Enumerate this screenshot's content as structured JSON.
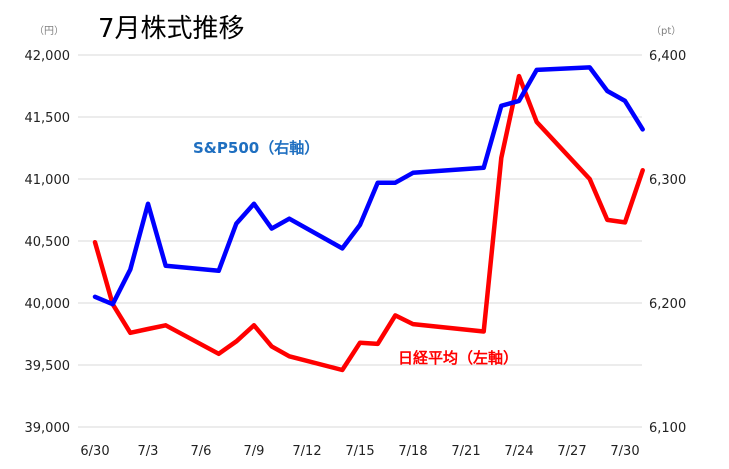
{
  "title": "7月株式推移",
  "chart_data": {
    "type": "line",
    "title": "7月株式推移",
    "x_tick_labels": [
      "6/30",
      "7/3",
      "7/6",
      "7/9",
      "7/12",
      "7/15",
      "7/18",
      "7/21",
      "7/24",
      "7/27",
      "7/30"
    ],
    "left_axis": {
      "unit": "（円）",
      "ylim": [
        39000,
        42000
      ],
      "ticks": [
        "39,000",
        "39,500",
        "40,000",
        "40,500",
        "41,000",
        "41,500",
        "42,000"
      ]
    },
    "right_axis": {
      "unit": "（pt）",
      "ylim": [
        6100,
        6400
      ],
      "ticks": [
        "6,100",
        "6,200",
        "6,300",
        "6,400"
      ]
    },
    "grid": "horizontal",
    "series": [
      {
        "name": "日経平均",
        "label": "日経平均（左軸）",
        "axis": "left",
        "color": "#ff0000",
        "x": [
          "6/30",
          "7/1",
          "7/2",
          "7/3",
          "7/4",
          "7/7",
          "7/8",
          "7/9",
          "7/10",
          "7/11",
          "7/14",
          "7/15",
          "7/16",
          "7/17",
          "7/18",
          "7/22",
          "7/23",
          "7/24",
          "7/25",
          "7/28",
          "7/29",
          "7/30",
          "7/31"
        ],
        "values": [
          40490,
          39990,
          39760,
          39790,
          39820,
          39590,
          39690,
          39820,
          39650,
          39570,
          39460,
          39680,
          39670,
          39900,
          39830,
          39770,
          41170,
          41830,
          41460,
          41000,
          40670,
          40650,
          41070
        ]
      },
      {
        "name": "S&P500",
        "label": "S&P500（右軸）",
        "axis": "right",
        "color": "#0000ff",
        "x": [
          "6/30",
          "7/1",
          "7/2",
          "7/3",
          "7/4",
          "7/7",
          "7/8",
          "7/9",
          "7/10",
          "7/11",
          "7/14",
          "7/15",
          "7/16",
          "7/17",
          "7/18",
          "7/22",
          "7/23",
          "7/24",
          "7/25",
          "7/28",
          "7/29",
          "7/30",
          "7/31"
        ],
        "values": [
          6205,
          6199,
          6227,
          6280,
          6230,
          6226,
          6264,
          6280,
          6260,
          6268,
          6244,
          6263,
          6297,
          6297,
          6305,
          6309,
          6359,
          6363,
          6388,
          6390,
          6371,
          6363,
          6340
        ]
      }
    ]
  }
}
